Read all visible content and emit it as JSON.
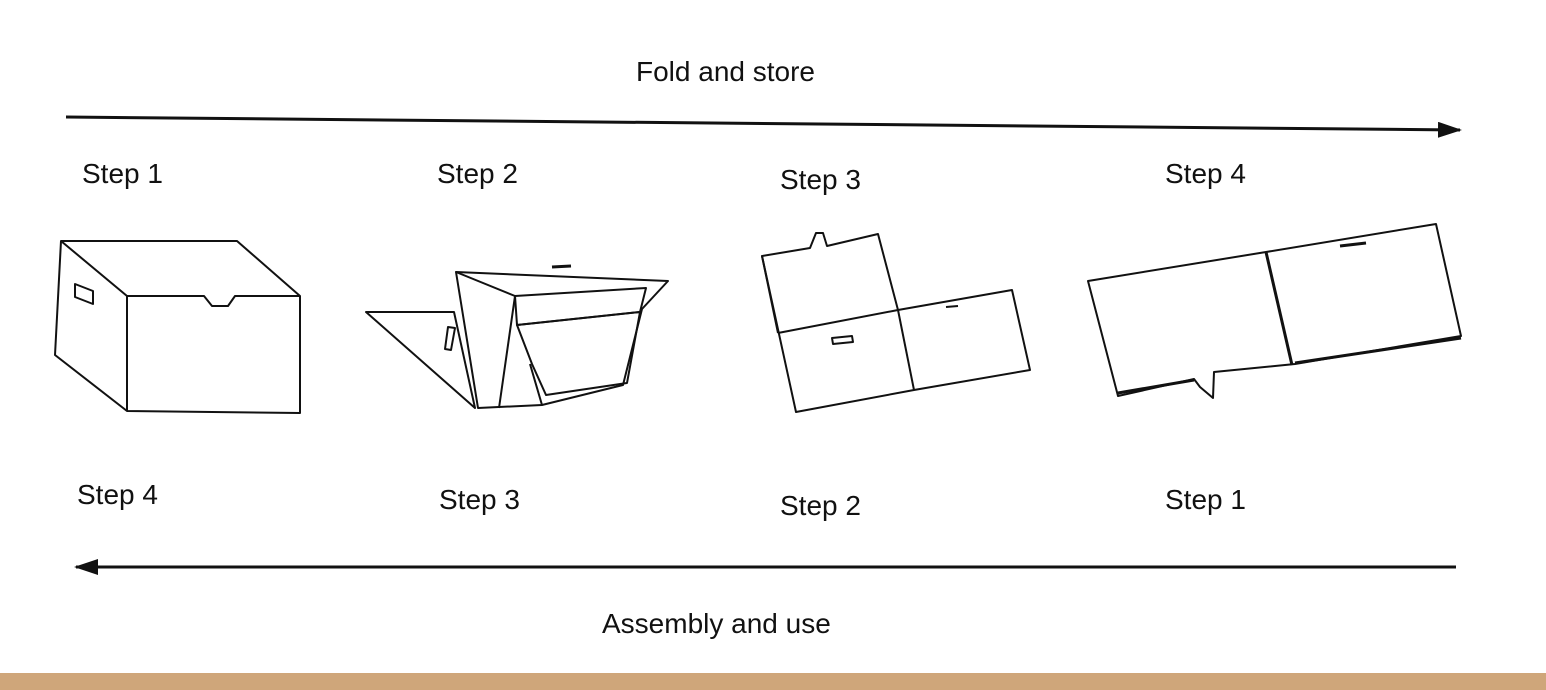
{
  "top_flow": {
    "label": "Fold and store",
    "direction": "left-to-right",
    "steps": [
      "Step 1",
      "Step 2",
      "Step 3",
      "Step 4"
    ]
  },
  "bottom_flow": {
    "label": "Assembly and use",
    "direction": "right-to-left",
    "steps": [
      "Step 4",
      "Step 3",
      "Step 2",
      "Step 1"
    ]
  },
  "colors": {
    "ink": "#111111",
    "background": "#ffffff",
    "footer_bar": "#cfa67a"
  }
}
